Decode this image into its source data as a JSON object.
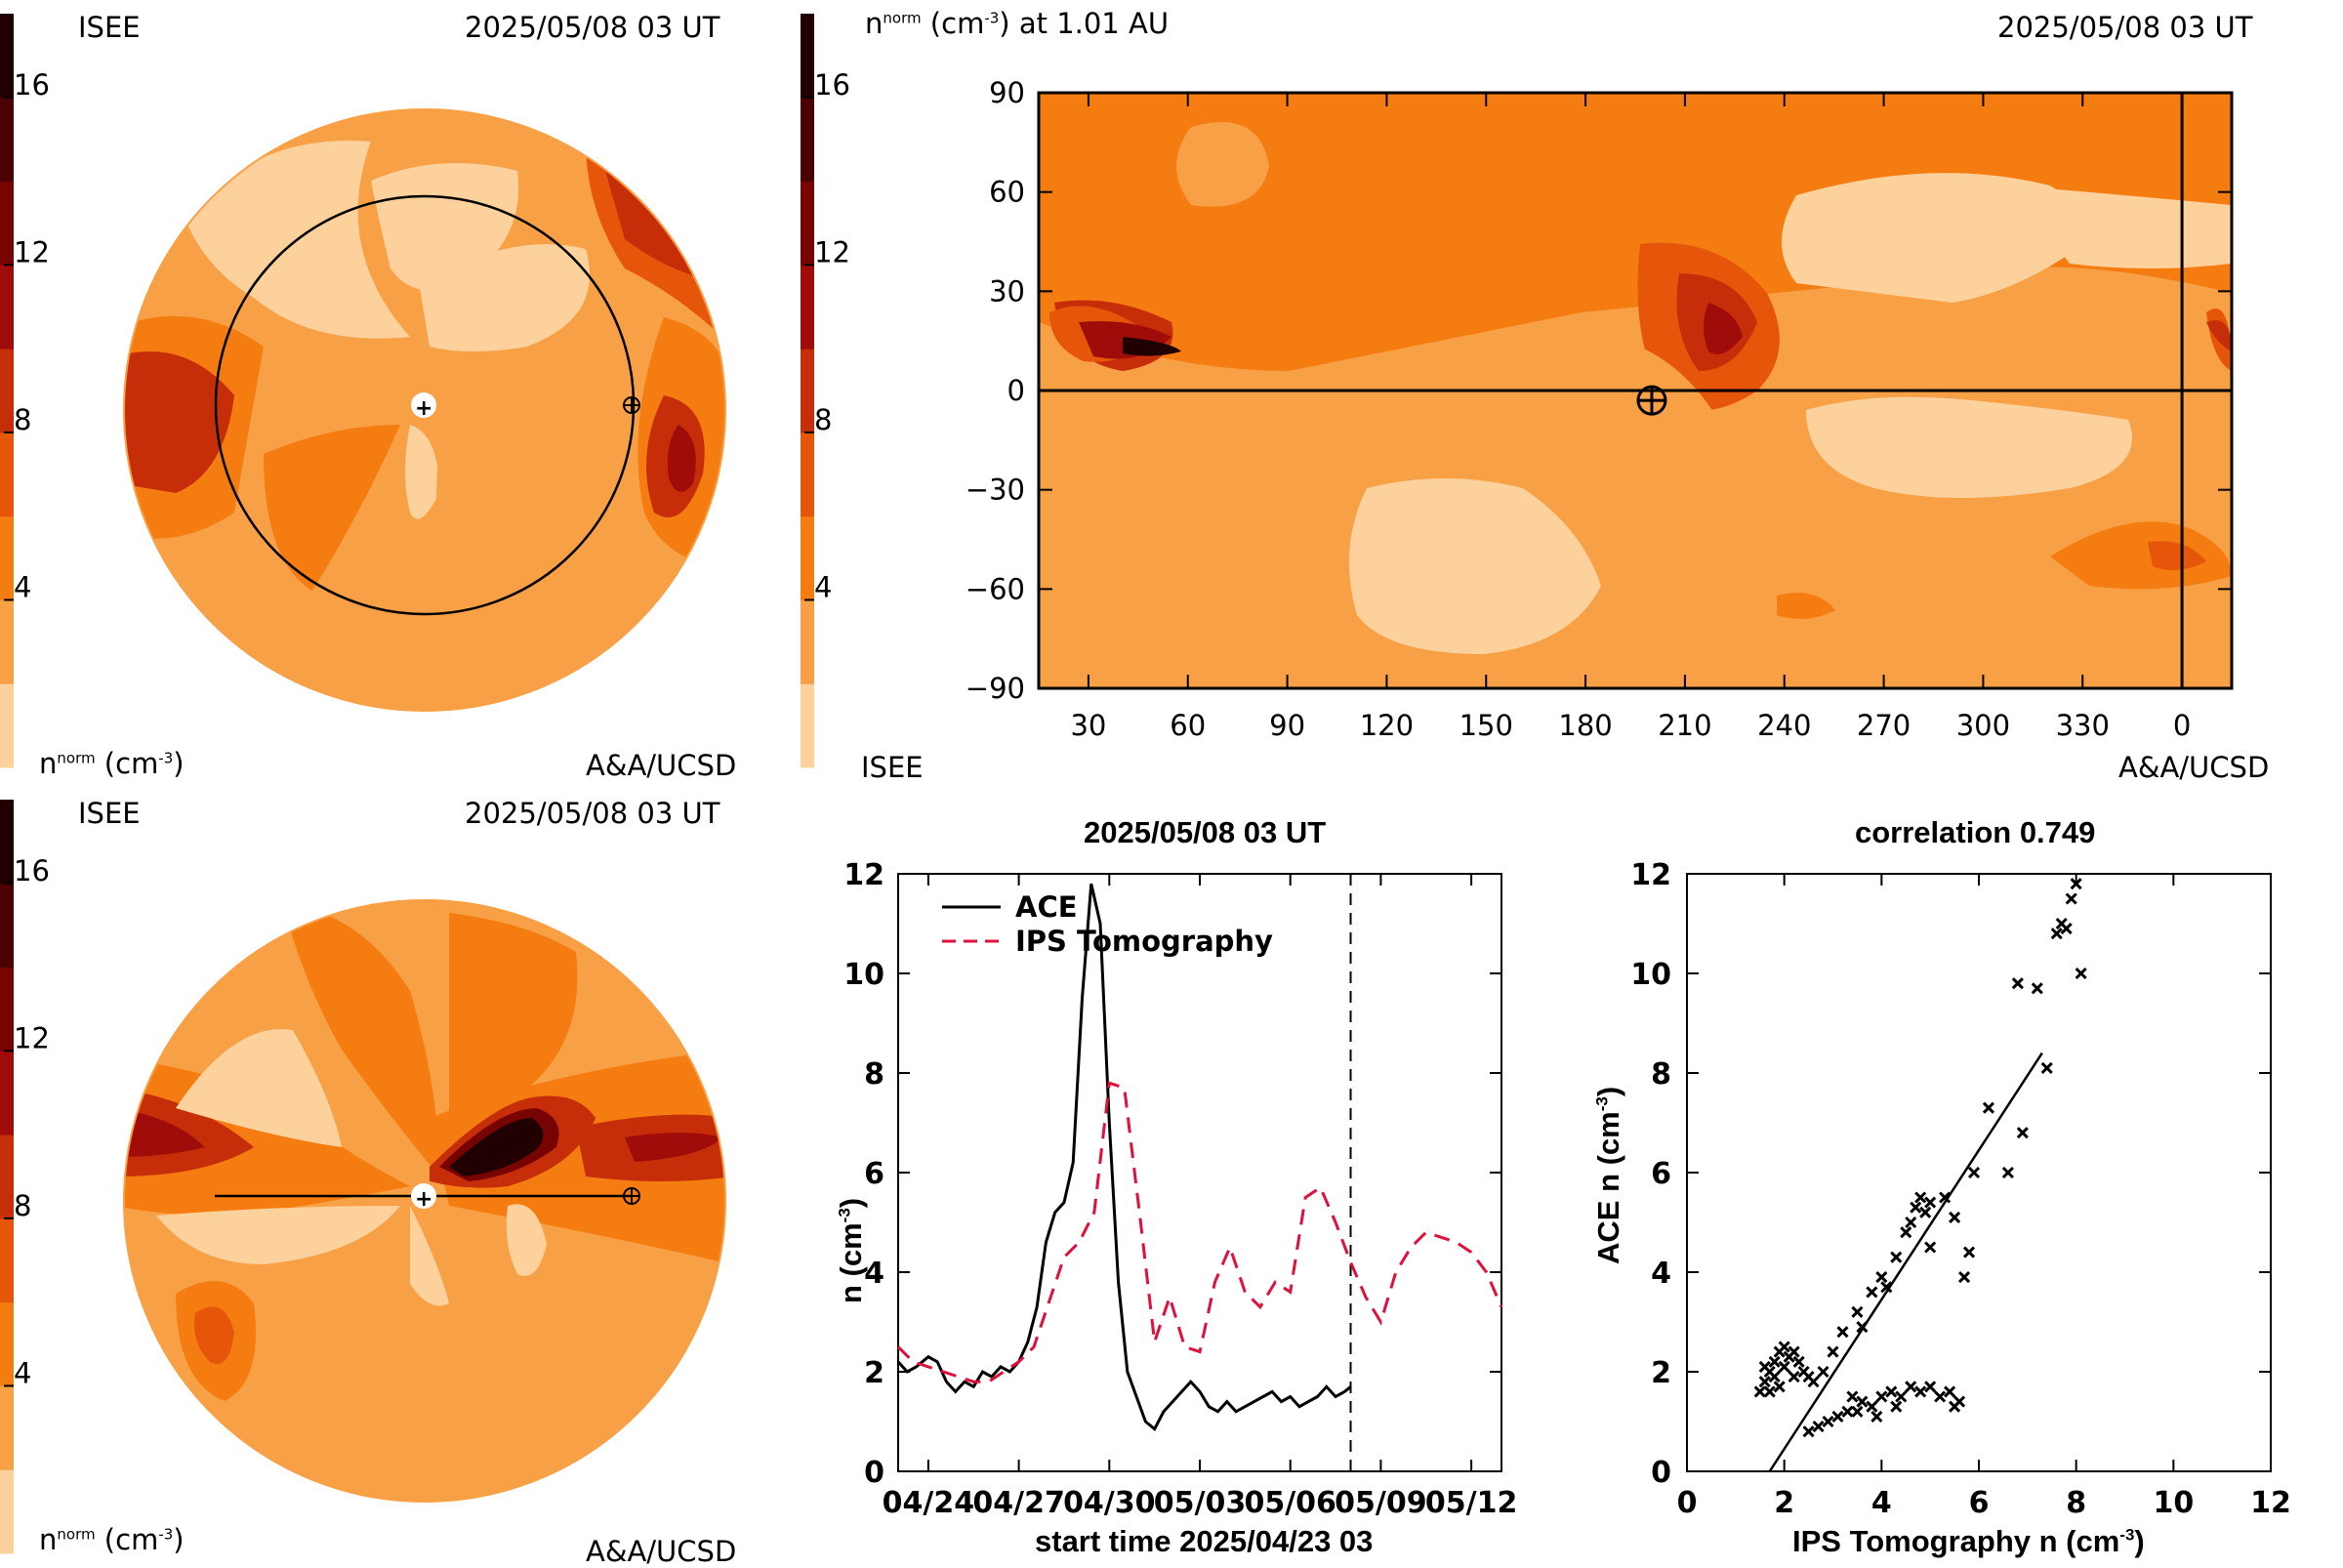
{
  "colors": {
    "scale": [
      "#fcd19c",
      "#f8a046",
      "#f57c11",
      "#e6560a",
      "#c62e0a",
      "#a00c09",
      "#780402",
      "#4a0000",
      "#200000"
    ],
    "ace": "#000000",
    "ips": "#e0103c"
  },
  "colorbar": {
    "ticks": [
      "16",
      "12",
      "8",
      "4"
    ],
    "tick_values": [
      16,
      12,
      8,
      4
    ],
    "min": 0,
    "max": 18
  },
  "polar_top": {
    "station": "ISEE",
    "time": "2025/05/08 03 UT",
    "unit_prefix": "n",
    "unit_sup": "norm",
    "unit_rest": " (cm",
    "unit_exp": "-3",
    "unit_close": ")",
    "credit": "A&A/UCSD"
  },
  "polar_bottom": {
    "station": "ISEE",
    "time": "2025/05/08 03 UT",
    "unit_prefix": "n",
    "unit_sup": "norm",
    "unit_rest": " (cm",
    "unit_exp": "-3",
    "unit_close": ")",
    "credit": "A&A/UCSD"
  },
  "synoptic": {
    "title_prefix": "n",
    "title_sup": "norm",
    "title_rest": " (cm",
    "title_exp": "-3",
    "title_after": ") at 1.01 AU",
    "time": "2025/05/08 03 UT",
    "station": "ISEE",
    "credit": "A&A/UCSD",
    "y_ticks": [
      "90",
      "60",
      "30",
      "0",
      "−30",
      "−60",
      "−90"
    ],
    "y_tick_values": [
      90,
      60,
      30,
      0,
      -30,
      -60,
      -90
    ],
    "x_ticks": [
      "30",
      "60",
      "90",
      "120",
      "150",
      "180",
      "210",
      "240",
      "270",
      "300",
      "330",
      "0"
    ],
    "x_tick_values": [
      30,
      60,
      90,
      120,
      150,
      180,
      210,
      240,
      270,
      300,
      330,
      360
    ]
  },
  "timeseries": {
    "title": "2025/05/08 03 UT",
    "ylabel_main": "n (cm",
    "ylabel_exp": "-3",
    "ylabel_close": ")",
    "xlabel": "start time 2025/04/23 03",
    "legend": [
      "ACE",
      "IPS Tomography"
    ]
  },
  "scatterplot": {
    "title": "correlation 0.749",
    "xlabel_main": "IPS Tomography n (cm",
    "xlabel_exp": "-3",
    "xlabel_close": ")",
    "ylabel_main": "ACE n (cm",
    "ylabel_exp": "-3",
    "ylabel_close": ")"
  },
  "chart_data": [
    {
      "type": "heatmap",
      "title": "",
      "note": "ecliptic-plane density map, 2025/05/08 03 UT, colorbar 0–18 cm^-3"
    },
    {
      "type": "heatmap",
      "title": "",
      "xlabel": "",
      "ylabel": "",
      "xlim": [
        15,
        375
      ],
      "ylim": [
        -90,
        90
      ],
      "x_tick_labels": [
        "30",
        "60",
        "90",
        "120",
        "150",
        "180",
        "210",
        "240",
        "270",
        "300",
        "330",
        "0"
      ],
      "markers": [
        {
          "name": "Earth",
          "x": 200,
          "y": -3
        }
      ],
      "lines": [
        {
          "orientation": "horizontal",
          "y": 0
        },
        {
          "orientation": "vertical",
          "x": 360
        }
      ]
    },
    {
      "type": "heatmap",
      "title": "",
      "note": "meridional-plane density map, 2025/05/08 03 UT, colorbar 0–18 cm^-3"
    },
    {
      "type": "line",
      "title": "2025/05/08 03 UT",
      "xlabel": "start time 2025/04/23 03",
      "ylabel": "n (cm-3)",
      "xlim": [
        0,
        20
      ],
      "ylim": [
        0,
        12
      ],
      "x_tick_values": [
        1,
        4,
        7,
        10,
        13,
        16,
        19
      ],
      "x_tick_labels": [
        "04/24",
        "04/27",
        "04/30",
        "05/03",
        "05/06",
        "05/09",
        "05/12"
      ],
      "y_tick_values": [
        0,
        2,
        4,
        6,
        8,
        10,
        12
      ],
      "vline_x": 15,
      "series": [
        {
          "name": "ACE",
          "style": "solid",
          "x": [
            0,
            0.3,
            0.6,
            1.0,
            1.3,
            1.6,
            1.9,
            2.2,
            2.5,
            2.8,
            3.1,
            3.4,
            3.7,
            4.0,
            4.3,
            4.6,
            4.9,
            5.2,
            5.5,
            5.8,
            6.1,
            6.4,
            6.7,
            7.0,
            7.3,
            7.6,
            7.9,
            8.2,
            8.5,
            8.8,
            9.1,
            9.4,
            9.7,
            10.0,
            10.3,
            10.6,
            10.9,
            11.2,
            11.5,
            11.8,
            12.1,
            12.4,
            12.7,
            13.0,
            13.3,
            13.6,
            13.9,
            14.2,
            14.5,
            14.8,
            15.0
          ],
          "y": [
            2.2,
            2.0,
            2.1,
            2.3,
            2.2,
            1.8,
            1.6,
            1.8,
            1.7,
            2.0,
            1.9,
            2.1,
            2.0,
            2.2,
            2.6,
            3.3,
            4.6,
            5.2,
            5.4,
            6.2,
            9.5,
            11.8,
            11.0,
            7.0,
            3.8,
            2.0,
            1.5,
            1.0,
            0.85,
            1.2,
            1.4,
            1.6,
            1.8,
            1.6,
            1.3,
            1.2,
            1.4,
            1.2,
            1.3,
            1.4,
            1.5,
            1.6,
            1.4,
            1.5,
            1.3,
            1.4,
            1.5,
            1.7,
            1.5,
            1.6,
            1.7
          ]
        },
        {
          "name": "IPS Tomography",
          "style": "dashed",
          "x": [
            0,
            0.5,
            1.0,
            1.5,
            2.0,
            2.5,
            3.0,
            3.5,
            4.0,
            4.5,
            5.0,
            5.5,
            6.0,
            6.5,
            7.0,
            7.5,
            8.0,
            8.5,
            9.0,
            9.5,
            10.0,
            10.5,
            11.0,
            11.5,
            12.0,
            12.5,
            13.0,
            13.5,
            14.0,
            14.5,
            15.0,
            15.5,
            16.0,
            16.5,
            17.0,
            17.5,
            18.0,
            18.5,
            19.0,
            19.5,
            20.0
          ],
          "y": [
            2.5,
            2.2,
            2.1,
            2.0,
            1.9,
            1.8,
            1.8,
            2.0,
            2.2,
            2.5,
            3.4,
            4.3,
            4.6,
            5.2,
            7.8,
            7.7,
            5.2,
            2.6,
            3.5,
            2.5,
            2.4,
            3.8,
            4.5,
            3.6,
            3.3,
            3.8,
            3.6,
            5.5,
            5.7,
            5.0,
            4.2,
            3.5,
            3.0,
            4.0,
            4.5,
            4.8,
            4.7,
            4.6,
            4.4,
            4.0,
            3.3
          ]
        }
      ]
    },
    {
      "type": "scatter",
      "title": "correlation 0.749",
      "xlabel": "IPS Tomography n (cm-3)",
      "ylabel": "ACE n (cm-3)",
      "xlim": [
        0,
        12
      ],
      "ylim": [
        0,
        12
      ],
      "x_tick_values": [
        0,
        2,
        4,
        6,
        8,
        10,
        12
      ],
      "y_tick_values": [
        0,
        2,
        4,
        6,
        8,
        10,
        12
      ],
      "fit_line": [
        [
          1.7,
          0
        ],
        [
          7.3,
          8.4
        ]
      ],
      "points": [
        [
          1.5,
          1.6
        ],
        [
          1.6,
          1.8
        ],
        [
          1.7,
          2.0
        ],
        [
          1.8,
          2.2
        ],
        [
          1.9,
          2.4
        ],
        [
          2.0,
          2.1
        ],
        [
          2.1,
          2.3
        ],
        [
          2.2,
          1.9
        ],
        [
          2.3,
          2.2
        ],
        [
          2.4,
          2.0
        ],
        [
          2.5,
          1.9
        ],
        [
          2.6,
          1.8
        ],
        [
          1.7,
          1.6
        ],
        [
          1.8,
          1.9
        ],
        [
          2.0,
          2.5
        ],
        [
          2.2,
          2.4
        ],
        [
          1.6,
          2.1
        ],
        [
          1.9,
          1.7
        ],
        [
          2.8,
          2.0
        ],
        [
          3.0,
          2.4
        ],
        [
          2.5,
          0.8
        ],
        [
          2.7,
          0.9
        ],
        [
          2.9,
          1.0
        ],
        [
          3.1,
          1.1
        ],
        [
          3.3,
          1.2
        ],
        [
          3.5,
          1.2
        ],
        [
          3.6,
          1.4
        ],
        [
          3.8,
          1.3
        ],
        [
          4.0,
          1.5
        ],
        [
          4.2,
          1.6
        ],
        [
          4.4,
          1.5
        ],
        [
          4.6,
          1.7
        ],
        [
          4.8,
          1.6
        ],
        [
          5.0,
          1.7
        ],
        [
          5.2,
          1.5
        ],
        [
          5.4,
          1.6
        ],
        [
          5.6,
          1.4
        ],
        [
          3.4,
          1.5
        ],
        [
          3.9,
          1.1
        ],
        [
          4.3,
          1.3
        ],
        [
          5.5,
          1.3
        ],
        [
          3.2,
          2.8
        ],
        [
          3.5,
          3.2
        ],
        [
          3.8,
          3.6
        ],
        [
          4.0,
          3.9
        ],
        [
          4.3,
          4.3
        ],
        [
          4.5,
          4.8
        ],
        [
          4.6,
          5.0
        ],
        [
          4.7,
          5.3
        ],
        [
          4.8,
          5.5
        ],
        [
          4.9,
          5.2
        ],
        [
          5.0,
          5.4
        ],
        [
          5.3,
          5.5
        ],
        [
          5.5,
          5.1
        ],
        [
          3.6,
          2.9
        ],
        [
          4.1,
          3.7
        ],
        [
          5.0,
          4.5
        ],
        [
          5.7,
          3.9
        ],
        [
          5.9,
          6.0
        ],
        [
          5.8,
          4.4
        ],
        [
          6.2,
          7.3
        ],
        [
          6.6,
          6.0
        ],
        [
          6.9,
          6.8
        ],
        [
          7.2,
          9.7
        ],
        [
          7.4,
          8.1
        ],
        [
          6.8,
          9.8
        ],
        [
          7.6,
          10.8
        ],
        [
          7.8,
          10.9
        ],
        [
          7.9,
          11.5
        ],
        [
          8.0,
          11.8
        ],
        [
          8.1,
          10.0
        ],
        [
          7.7,
          11.0
        ]
      ]
    }
  ]
}
